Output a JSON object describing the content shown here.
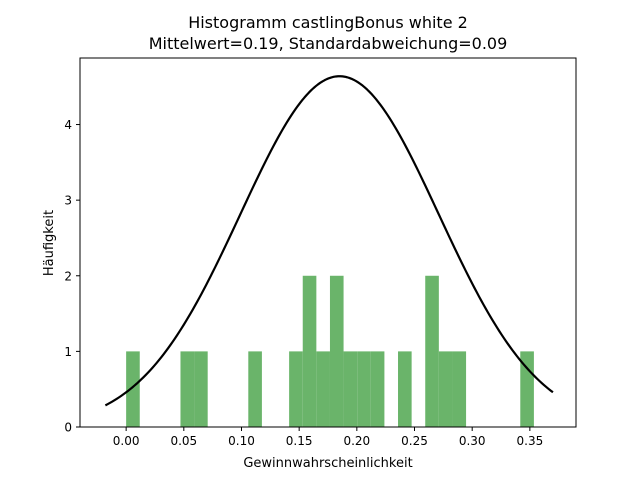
{
  "chart_data": {
    "type": "bar",
    "title": "Histogramm castlingBonus white 2",
    "subtitle": "Mittelwert=0.19, Standardabweichung=0.09",
    "xlabel": "Gewinnwahrscheinlichkeit",
    "ylabel": "Häufigkeit",
    "xlim": [
      -0.04,
      0.39
    ],
    "ylim": [
      0,
      4.88
    ],
    "xticks": [
      0.0,
      0.05,
      0.1,
      0.15,
      0.2,
      0.25,
      0.3,
      0.35
    ],
    "xtick_labels": [
      "0.00",
      "0.05",
      "0.10",
      "0.15",
      "0.20",
      "0.25",
      "0.30",
      "0.35"
    ],
    "yticks": [
      0,
      1,
      2,
      3,
      4
    ],
    "ytick_labels": [
      "0",
      "1",
      "2",
      "3",
      "4"
    ],
    "grid": false,
    "bar_color": "#6ab46a",
    "curve_color": "#000000",
    "bins": [
      {
        "x0": 0.0,
        "x1": 0.0118,
        "count": 1
      },
      {
        "x0": 0.0471,
        "x1": 0.0589,
        "count": 1
      },
      {
        "x0": 0.0589,
        "x1": 0.0707,
        "count": 1
      },
      {
        "x0": 0.1059,
        "x1": 0.1177,
        "count": 1
      },
      {
        "x0": 0.1413,
        "x1": 0.1531,
        "count": 1
      },
      {
        "x0": 0.1531,
        "x1": 0.1649,
        "count": 2
      },
      {
        "x0": 0.1649,
        "x1": 0.1767,
        "count": 1
      },
      {
        "x0": 0.1767,
        "x1": 0.1885,
        "count": 2
      },
      {
        "x0": 0.1885,
        "x1": 0.2003,
        "count": 1
      },
      {
        "x0": 0.2003,
        "x1": 0.2121,
        "count": 1
      },
      {
        "x0": 0.2121,
        "x1": 0.2239,
        "count": 1
      },
      {
        "x0": 0.2357,
        "x1": 0.2475,
        "count": 1
      },
      {
        "x0": 0.2593,
        "x1": 0.2711,
        "count": 2
      },
      {
        "x0": 0.2711,
        "x1": 0.2829,
        "count": 1
      },
      {
        "x0": 0.2829,
        "x1": 0.2947,
        "count": 1
      },
      {
        "x0": 0.3417,
        "x1": 0.3535,
        "count": 1
      }
    ],
    "curve": {
      "type": "normal",
      "mean": 0.185,
      "std": 0.086,
      "x_range": [
        -0.018,
        0.37
      ]
    }
  }
}
